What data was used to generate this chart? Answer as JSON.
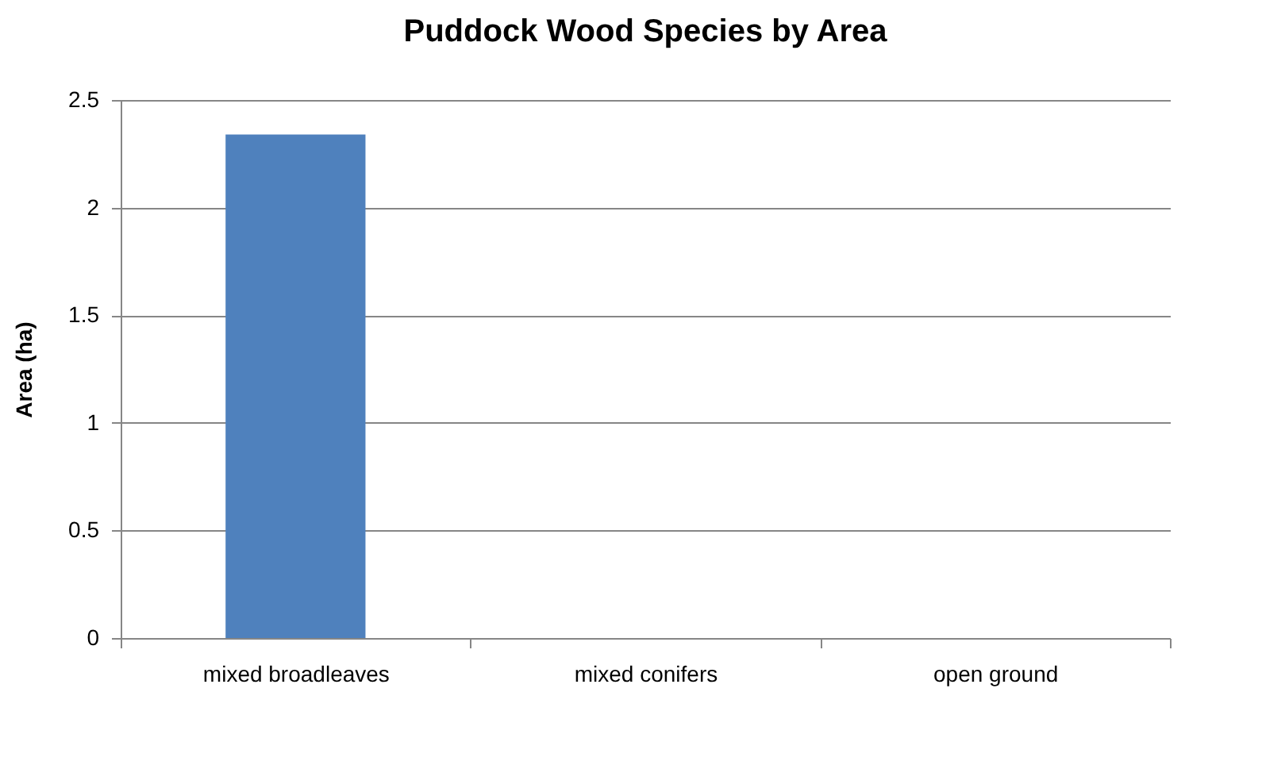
{
  "chart_data": {
    "type": "bar",
    "title": "Puddock Wood Species by Area",
    "ylabel": "Area (ha)",
    "categories": [
      "mixed broadleaves",
      "mixed conifers",
      "open ground"
    ],
    "values": [
      2.34,
      0,
      0
    ],
    "color": "#4f81bd",
    "ylim": [
      0,
      2.5
    ],
    "yticks": [
      0,
      0.5,
      1,
      1.5,
      2,
      2.5
    ],
    "grid": "y"
  }
}
